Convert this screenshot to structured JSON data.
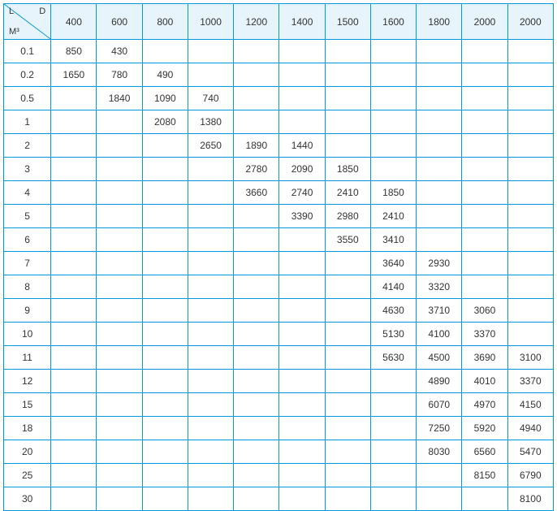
{
  "table": {
    "type": "table",
    "border_color": "#0099dd",
    "header_bg_color": "#e8f4fb",
    "cell_bg_color": "#ffffff",
    "text_color": "#333333",
    "font_size": 12,
    "corner": {
      "label_l": "L",
      "label_d": "D",
      "label_m": "M³"
    },
    "columns": [
      "400",
      "600",
      "800",
      "1000",
      "1200",
      "1400",
      "1500",
      "1600",
      "1800",
      "2000",
      "2000"
    ],
    "row_headers": [
      "0.1",
      "0.2",
      "0.5",
      "1",
      "2",
      "3",
      "4",
      "5",
      "6",
      "7",
      "8",
      "9",
      "10",
      "11",
      "12",
      "15",
      "18",
      "20",
      "25",
      "30"
    ],
    "rows": [
      [
        "850",
        "430",
        "",
        "",
        "",
        "",
        "",
        "",
        "",
        "",
        ""
      ],
      [
        "1650",
        "780",
        "490",
        "",
        "",
        "",
        "",
        "",
        "",
        "",
        ""
      ],
      [
        "",
        "1840",
        "1090",
        "740",
        "",
        "",
        "",
        "",
        "",
        "",
        ""
      ],
      [
        "",
        "",
        "2080",
        "1380",
        "",
        "",
        "",
        "",
        "",
        "",
        ""
      ],
      [
        "",
        "",
        "",
        "2650",
        "1890",
        "1440",
        "",
        "",
        "",
        "",
        ""
      ],
      [
        "",
        "",
        "",
        "",
        "2780",
        "2090",
        "1850",
        "",
        "",
        "",
        ""
      ],
      [
        "",
        "",
        "",
        "",
        "3660",
        "2740",
        "2410",
        "1850",
        "",
        "",
        ""
      ],
      [
        "",
        "",
        "",
        "",
        "",
        "3390",
        "2980",
        "2410",
        "",
        "",
        ""
      ],
      [
        "",
        "",
        "",
        "",
        "",
        "",
        "3550",
        "3410",
        "",
        "",
        ""
      ],
      [
        "",
        "",
        "",
        "",
        "",
        "",
        "",
        "3640",
        "2930",
        "",
        ""
      ],
      [
        "",
        "",
        "",
        "",
        "",
        "",
        "",
        "4140",
        "3320",
        "",
        ""
      ],
      [
        "",
        "",
        "",
        "",
        "",
        "",
        "",
        "4630",
        "3710",
        "3060",
        ""
      ],
      [
        "",
        "",
        "",
        "",
        "",
        "",
        "",
        "5130",
        "4100",
        "3370",
        ""
      ],
      [
        "",
        "",
        "",
        "",
        "",
        "",
        "",
        "5630",
        "4500",
        "3690",
        "3100"
      ],
      [
        "",
        "",
        "",
        "",
        "",
        "",
        "",
        "",
        "4890",
        "4010",
        "3370"
      ],
      [
        "",
        "",
        "",
        "",
        "",
        "",
        "",
        "",
        "6070",
        "4970",
        "4150"
      ],
      [
        "",
        "",
        "",
        "",
        "",
        "",
        "",
        "",
        "7250",
        "5920",
        "4940"
      ],
      [
        "",
        "",
        "",
        "",
        "",
        "",
        "",
        "",
        "8030",
        "6560",
        "5470"
      ],
      [
        "",
        "",
        "",
        "",
        "",
        "",
        "",
        "",
        "",
        "8150",
        "6790"
      ],
      [
        "",
        "",
        "",
        "",
        "",
        "",
        "",
        "",
        "",
        "",
        "8100"
      ]
    ]
  }
}
